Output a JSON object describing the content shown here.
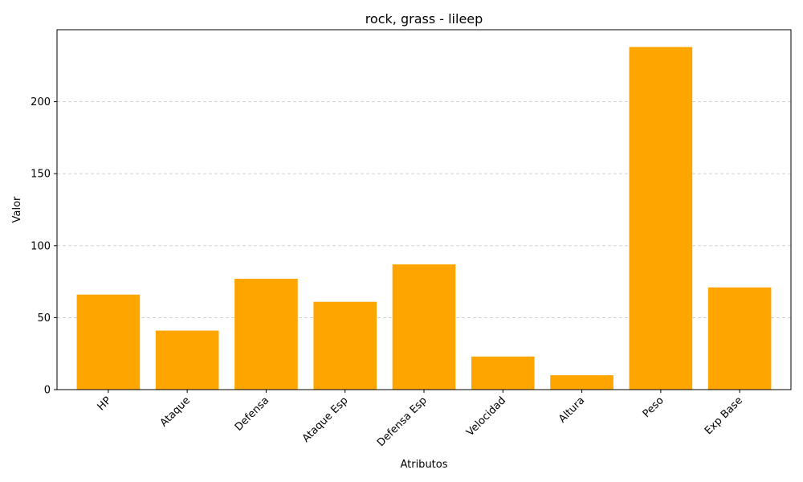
{
  "chart_data": {
    "type": "bar",
    "title": "rock, grass - lileep",
    "xlabel": "Atributos",
    "ylabel": "Valor",
    "categories": [
      "HP",
      "Ataque",
      "Defensa",
      "Ataque Esp",
      "Defensa Esp",
      "Velocidad",
      "Altura",
      "Peso",
      "Exp Base"
    ],
    "values": [
      66,
      41,
      77,
      61,
      87,
      23,
      10,
      238,
      71
    ],
    "ylim": [
      0,
      250
    ],
    "yticks": [
      0,
      50,
      100,
      150,
      200
    ],
    "grid": "y-dashed",
    "bar_color": "#FFA500",
    "grid_color": "#CCCCCC"
  }
}
